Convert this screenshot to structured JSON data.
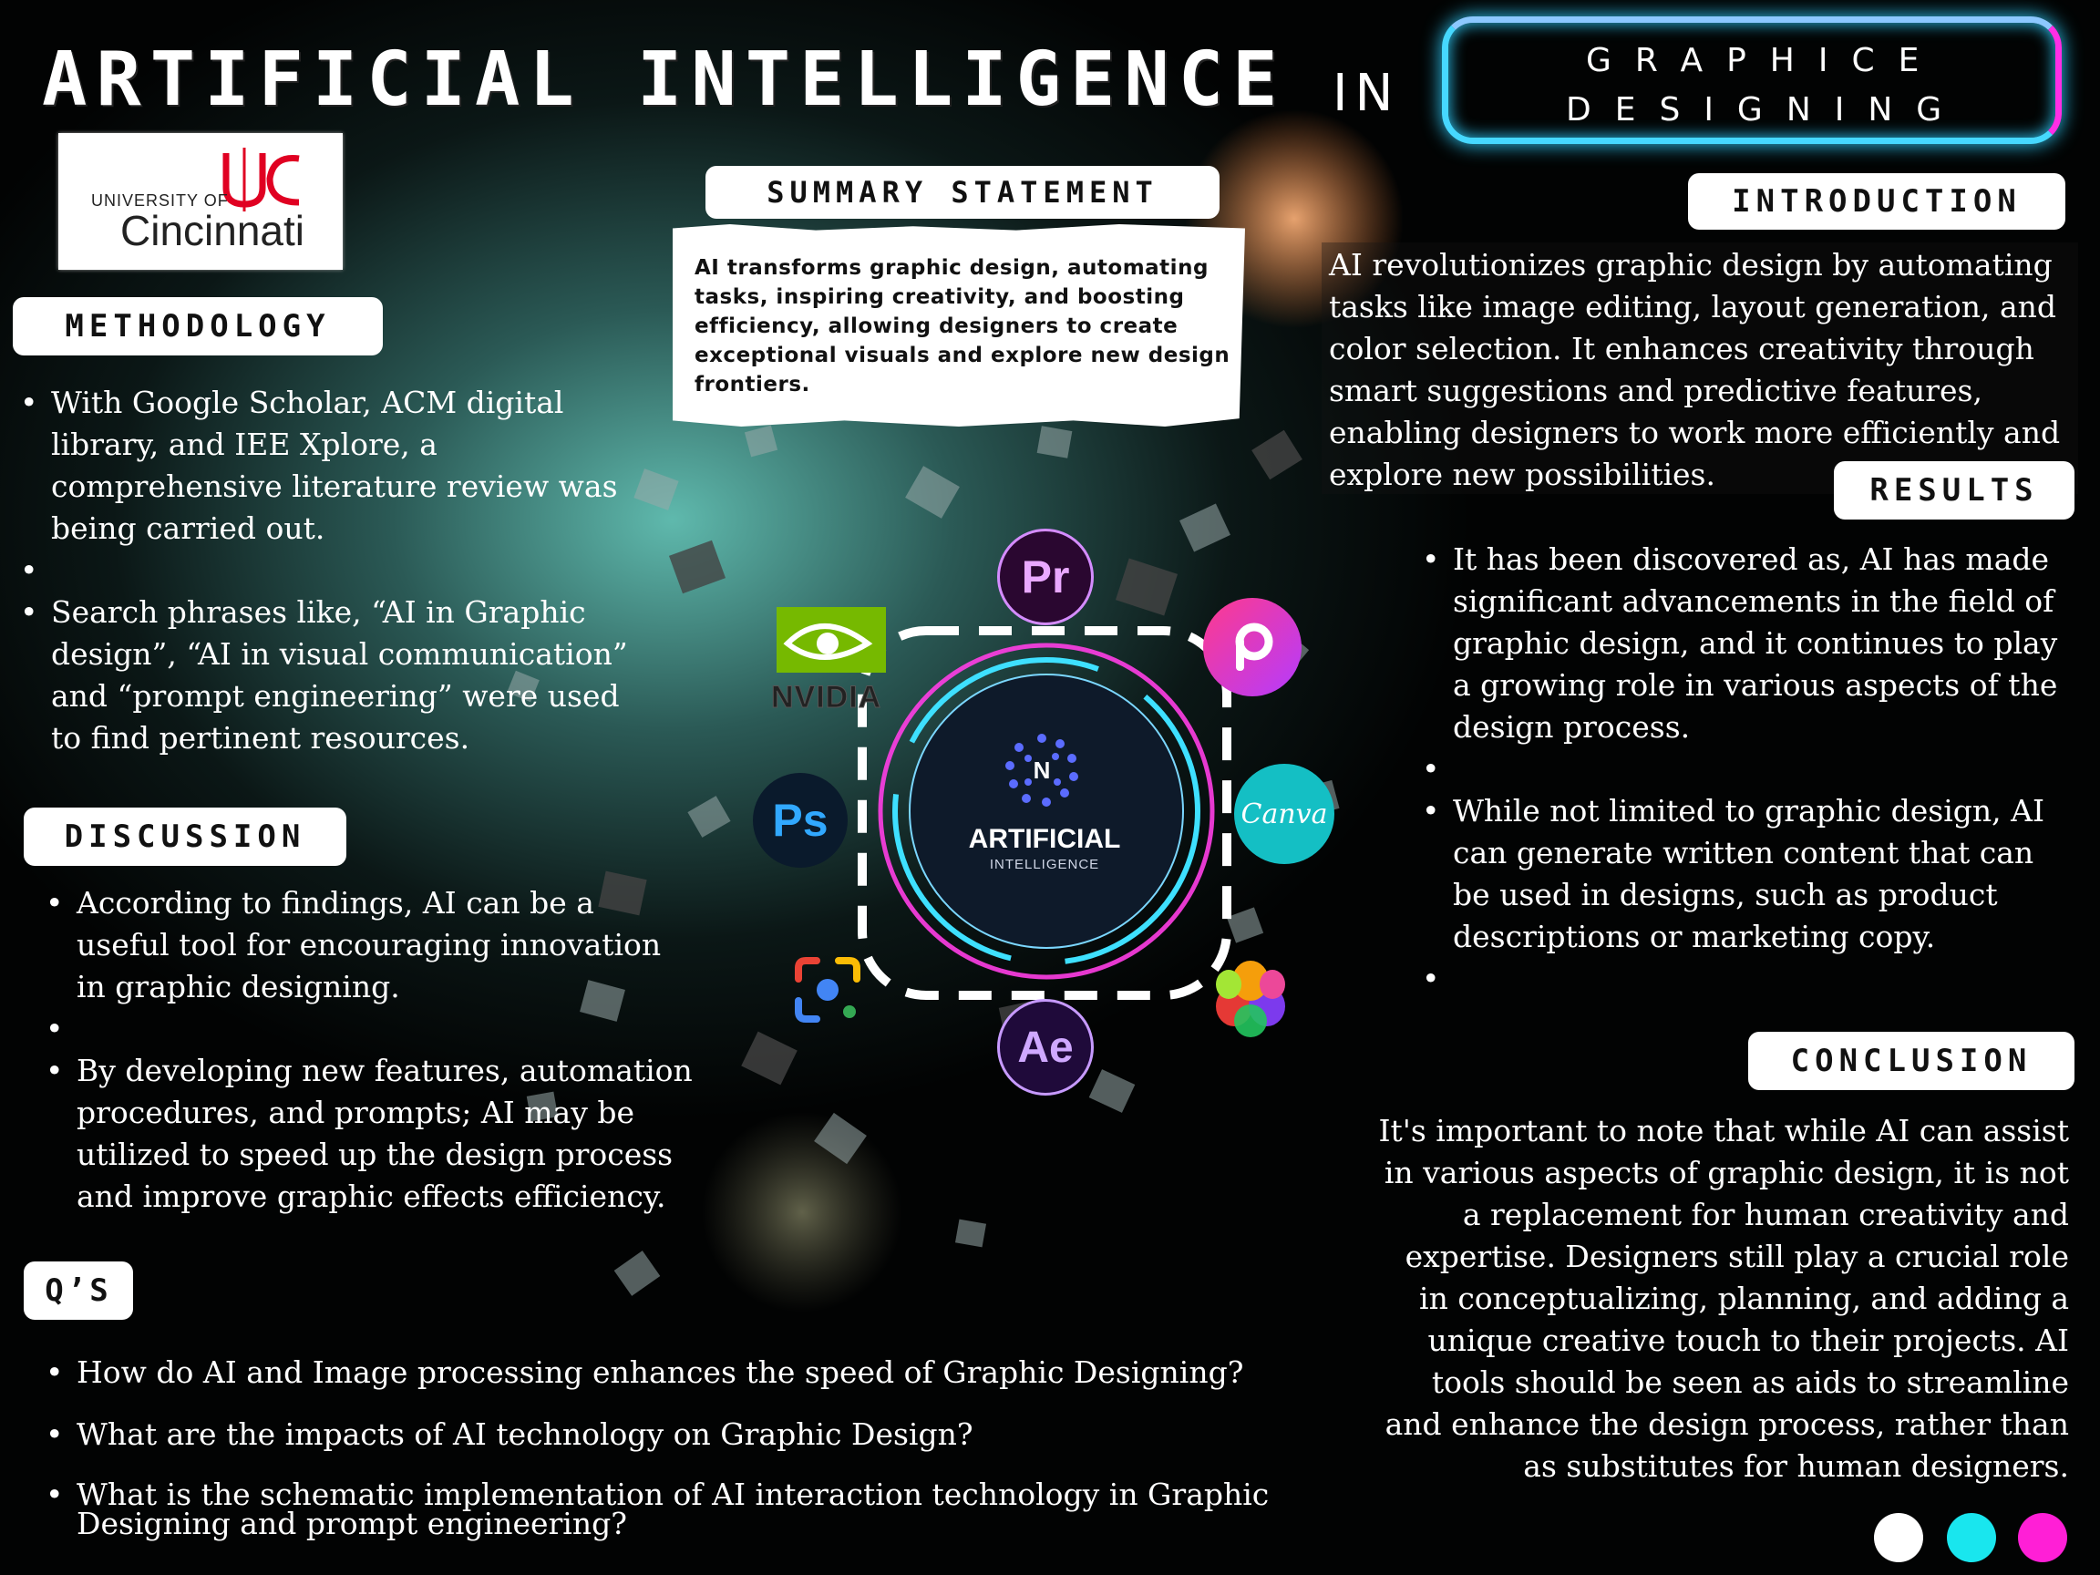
{
  "header": {
    "title": "ARTIFICIAL INTELLIGENCE",
    "title_in": "IN",
    "neon_line1": "GRAPHICE",
    "neon_line2": "DESIGNING"
  },
  "logo": {
    "line1": "UNIVERSITY OF",
    "line2": "Cincinnati"
  },
  "sections": {
    "methodology": {
      "heading": "METHODOLOGY",
      "items": [
        "With Google Scholar, ACM digital library, and IEE Xplore, a comprehensive literature review was being carried out.",
        "",
        "Search phrases like, “AI in Graphic design”, “AI in visual communication” and “prompt engineering” were used to find pertinent resources."
      ]
    },
    "discussion": {
      "heading": "DISCUSSION",
      "items": [
        "According to findings, AI can be a useful tool for encouraging innovation in graphic designing.",
        "",
        "By developing new features, automation procedures, and prompts; AI may be utilized to speed up the design process and improve graphic effects efficiency."
      ]
    },
    "questions": {
      "heading": "Q’S",
      "items": [
        "How do AI and Image processing enhances the speed of Graphic Designing?",
        "What are the impacts of AI technology on Graphic Design?",
        "What is the schematic implementation of AI interaction technology in Graphic Designing and prompt engineering?"
      ]
    },
    "summary": {
      "heading": "SUMMARY STATEMENT",
      "text": "AI transforms graphic design, automating tasks, inspiring creativity, and boosting efficiency, allowing designers to create exceptional visuals and explore new design frontiers."
    },
    "introduction": {
      "heading": "INTRODUCTION",
      "text": "AI revolutionizes graphic design by automating tasks like image editing, layout generation, and color selection. It enhances creativity through smart suggestions and predictive features, enabling designers to work more efficiently and explore new possibilities."
    },
    "results": {
      "heading": "RESULTS",
      "items": [
        "It has been discovered as, AI has made significant advancements in the field of graphic design, and it continues to play a growing role in various aspects of the design process.",
        "",
        "While not limited to graphic design, AI can generate written content that can be used in designs, such as product descriptions or marketing copy.",
        ""
      ]
    },
    "conclusion": {
      "heading": "CONCLUSION",
      "text": "It's important to note that while AI can assist in various aspects of graphic design, it is not a replacement for human creativity and expertise. Designers still play a crucial role in conceptualizing, planning, and adding a unique creative touch to their projects. AI tools should be seen as aids to streamline and enhance the design process, rather than as substitutes for human designers."
    }
  },
  "center": {
    "badge_letter": "N",
    "label1": "ARTIFICIAL",
    "label2": "INTELLIGENCE"
  },
  "icons": {
    "premiere": "Pr",
    "photoshop": "Ps",
    "after_effects": "Ae",
    "canva": "Canva",
    "nvidia": "NVIDIA",
    "picsart": "picsart-icon",
    "google_lens": "google-lens-icon",
    "davinci": "davinci-resolve-icon"
  },
  "colors": {
    "dot1": "#ffffff",
    "dot2": "#19e6ee",
    "dot3": "#ff1fd6",
    "neon_cyan": "#46d8ff",
    "neon_pink": "#ff2ee6"
  }
}
